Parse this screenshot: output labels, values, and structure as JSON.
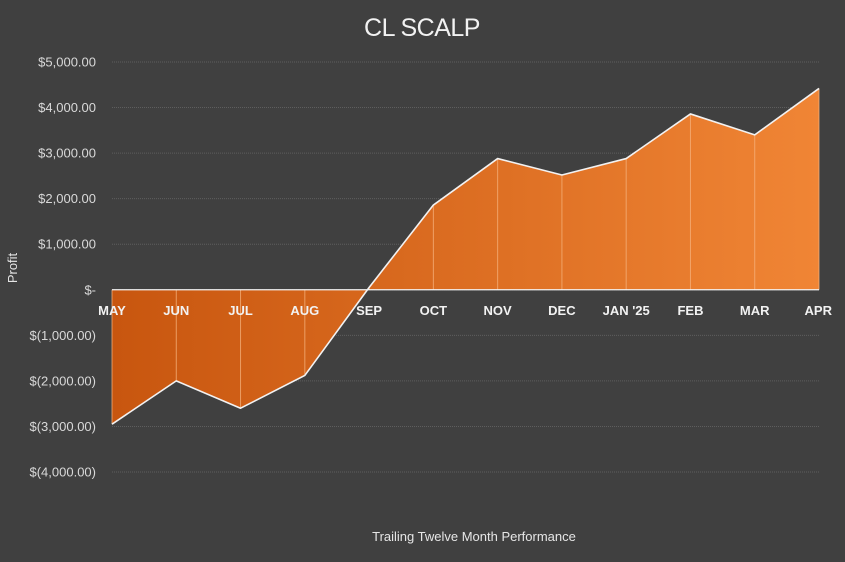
{
  "chart_data": {
    "type": "area",
    "title": "CL SCALP",
    "xlabel": "Trailing Twelve Month Performance",
    "ylabel": "Profit",
    "categories": [
      "MAY",
      "JUN",
      "JUL",
      "AUG",
      "SEP",
      "OCT",
      "NOV",
      "DEC",
      "JAN '25",
      "FEB",
      "MAR",
      "APR"
    ],
    "series": [
      {
        "values": [
          -2950,
          -2000,
          -2600,
          -1880,
          50,
          1860,
          2880,
          2520,
          2880,
          3860,
          3400,
          4420
        ]
      }
    ],
    "ylim": [
      -4000,
      5000
    ],
    "yticks": [
      5000,
      4000,
      3000,
      2000,
      1000,
      0,
      -1000,
      -2000,
      -3000,
      -4000
    ],
    "ytick_labels": [
      "$5,000.00",
      "$4,000.00",
      "$3,000.00",
      "$2,000.00",
      "$1,000.00",
      "$-",
      "$(1,000.00)",
      "$(2,000.00)",
      "$(3,000.00)",
      "$(4,000.00)"
    ],
    "grid": true,
    "colors": {
      "background": "#404040",
      "area_light": "#F08535",
      "area_dark": "#C8560F",
      "outline": "#F2F2F2",
      "gridline": "#5E5E5E",
      "text": "#F2F2F2"
    }
  }
}
